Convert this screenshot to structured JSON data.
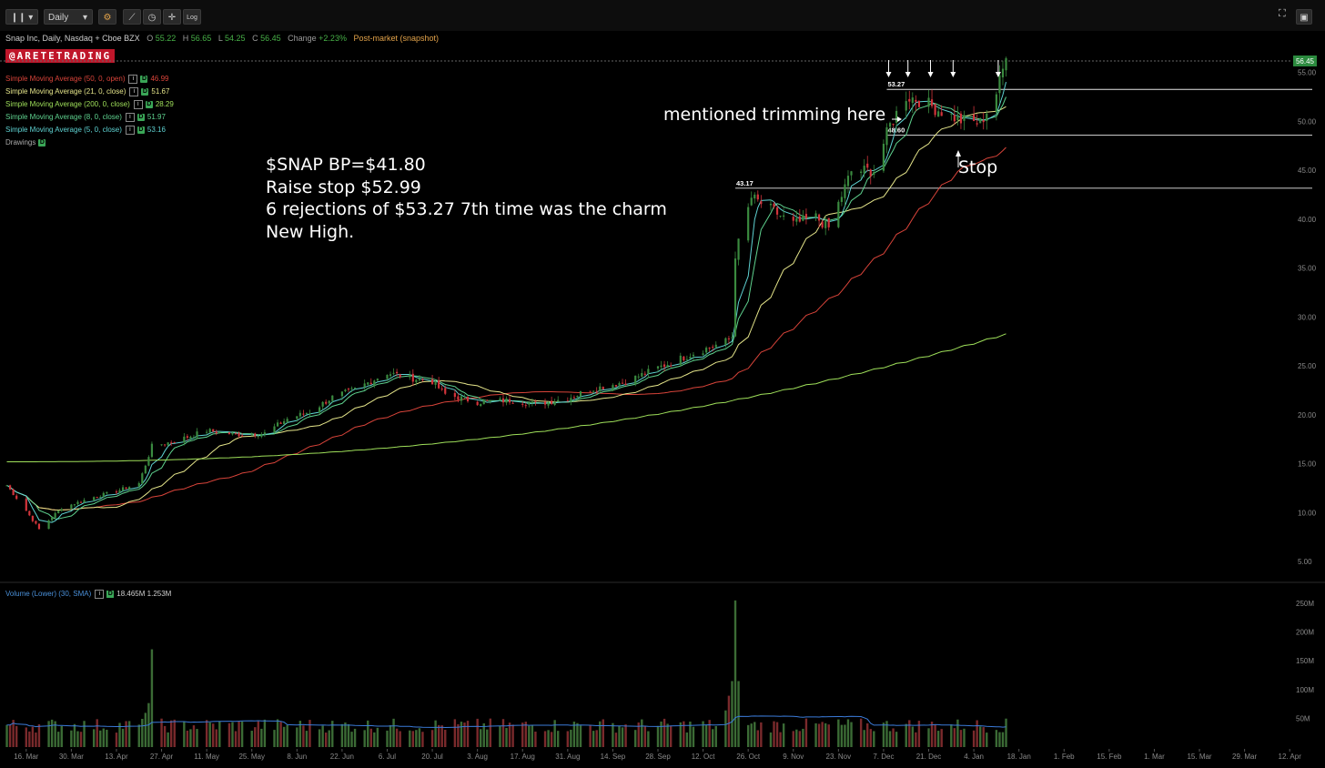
{
  "toolbar": {
    "bars_icon": "candlestick-icon",
    "interval": "Daily",
    "log_label": "Log"
  },
  "header": {
    "title": "Snap Inc, Daily, Nasdaq + Cboe BZX",
    "o_label": "O",
    "o_value": "55.22",
    "h_label": "H",
    "h_value": "56.65",
    "l_label": "L",
    "l_value": "54.25",
    "c_label": "C",
    "c_value": "56.45",
    "change_label": "Change",
    "change_value": "+2.23%",
    "postmarket": "Post-market (snapshot)"
  },
  "brand": "@ARETETRADING",
  "indicators": [
    {
      "label": "Simple Moving Average (50, 0, open)",
      "value": "46.99",
      "color": "#d9443a"
    },
    {
      "label": "Simple Moving Average (21, 0, close)",
      "value": "51.67",
      "color": "#e5e58a"
    },
    {
      "label": "Simple Moving Average (200, 0, close)",
      "value": "28.29",
      "color": "#9fe05a"
    },
    {
      "label": "Simple Moving Average (8, 0, close)",
      "value": "51.97",
      "color": "#5fd38f"
    },
    {
      "label": "Simple Moving Average (5, 0, close)",
      "value": "53.16",
      "color": "#5fd3d3"
    }
  ],
  "drawings_label": "Drawings",
  "note_lines": [
    "$SNAP BP=$41.80",
    "Raise stop $52.99",
    "6 rejections of $53.27 7th time was the charm",
    "New High."
  ],
  "annotations": {
    "trim": "mentioned trimming here",
    "stop": "Stop"
  },
  "volume_legend": {
    "label": "Volume (Lower) (30, SMA)",
    "value1": "18.465M",
    "value2": "1.253M"
  },
  "chart_data": {
    "type": "candlestick",
    "price_axis": {
      "ticks": [
        "55.00",
        "50.00",
        "45.00",
        "40.00",
        "35.00",
        "30.00",
        "25.00",
        "20.00",
        "15.00",
        "10.00",
        "5.00"
      ],
      "range": [
        3,
        57
      ]
    },
    "last_price_tag": "56.45",
    "horizontal_levels": [
      {
        "label": "53.27",
        "value": 53.27
      },
      {
        "label": "48.60",
        "value": 48.6
      },
      {
        "label": "43.17",
        "value": 43.17
      }
    ],
    "x_axis_ticks": [
      "16. Mar",
      "30. Mar",
      "13. Apr",
      "27. Apr",
      "11. May",
      "25. May",
      "8. Jun",
      "22. Jun",
      "6. Jul",
      "20. Jul",
      "3. Aug",
      "17. Aug",
      "31. Aug",
      "14. Sep",
      "28. Sep",
      "12. Oct",
      "26. Oct",
      "9. Nov",
      "23. Nov",
      "7. Dec",
      "21. Dec",
      "4. Jan",
      "18. Jan",
      "1. Feb",
      "15. Feb",
      "1. Mar",
      "15. Mar",
      "29. Mar",
      "12. Apr"
    ],
    "close_trend": [
      [
        "2020-03-10",
        12.8
      ],
      [
        "2020-03-16",
        10.2
      ],
      [
        "2020-03-20",
        8.3
      ],
      [
        "2020-03-27",
        10.5
      ],
      [
        "2020-04-06",
        11.6
      ],
      [
        "2020-04-13",
        12.2
      ],
      [
        "2020-04-20",
        13.0
      ],
      [
        "2020-04-24",
        16.8
      ],
      [
        "2020-05-01",
        17.3
      ],
      [
        "2020-05-11",
        18.4
      ],
      [
        "2020-05-20",
        18.0
      ],
      [
        "2020-05-29",
        18.1
      ],
      [
        "2020-06-05",
        19.6
      ],
      [
        "2020-06-12",
        20.3
      ],
      [
        "2020-06-19",
        21.8
      ],
      [
        "2020-06-26",
        22.6
      ],
      [
        "2020-07-06",
        24.3
      ],
      [
        "2020-07-13",
        23.8
      ],
      [
        "2020-07-20",
        23.4
      ],
      [
        "2020-07-24",
        22.1
      ],
      [
        "2020-08-03",
        21.3
      ],
      [
        "2020-08-14",
        21.5
      ],
      [
        "2020-08-21",
        21.1
      ],
      [
        "2020-08-31",
        21.7
      ],
      [
        "2020-09-07",
        22.6
      ],
      [
        "2020-09-18",
        23.4
      ],
      [
        "2020-09-28",
        24.8
      ],
      [
        "2020-10-09",
        26.3
      ],
      [
        "2020-10-19",
        27.5
      ],
      [
        "2020-10-21",
        28.0
      ],
      [
        "2020-10-22",
        36.4
      ],
      [
        "2020-10-27",
        42.2
      ],
      [
        "2020-11-02",
        41.0
      ],
      [
        "2020-11-09",
        39.5
      ],
      [
        "2020-11-16",
        40.2
      ],
      [
        "2020-11-20",
        39.1
      ],
      [
        "2020-11-27",
        44.9
      ],
      [
        "2020-12-04",
        45.0
      ],
      [
        "2020-12-09",
        49.6
      ],
      [
        "2020-12-14",
        52.6
      ],
      [
        "2020-12-18",
        52.2
      ],
      [
        "2020-12-24",
        51.2
      ],
      [
        "2020-12-31",
        50.1
      ],
      [
        "2021-01-06",
        49.8
      ],
      [
        "2021-01-11",
        52.9
      ],
      [
        "2021-01-14",
        56.45
      ]
    ],
    "sma_latest": {
      "sma50_open": 46.99,
      "sma21": 51.67,
      "sma200": 28.29,
      "sma8": 51.97,
      "sma5": 53.16
    },
    "volume_axis": {
      "ticks": [
        "250M",
        "200M",
        "150M",
        "100M",
        "50M"
      ],
      "range": [
        0,
        262
      ]
    },
    "volume_peaks": [
      {
        "date": "2020-04-24",
        "value": 170
      },
      {
        "date": "2020-10-22",
        "value": 255
      }
    ]
  }
}
